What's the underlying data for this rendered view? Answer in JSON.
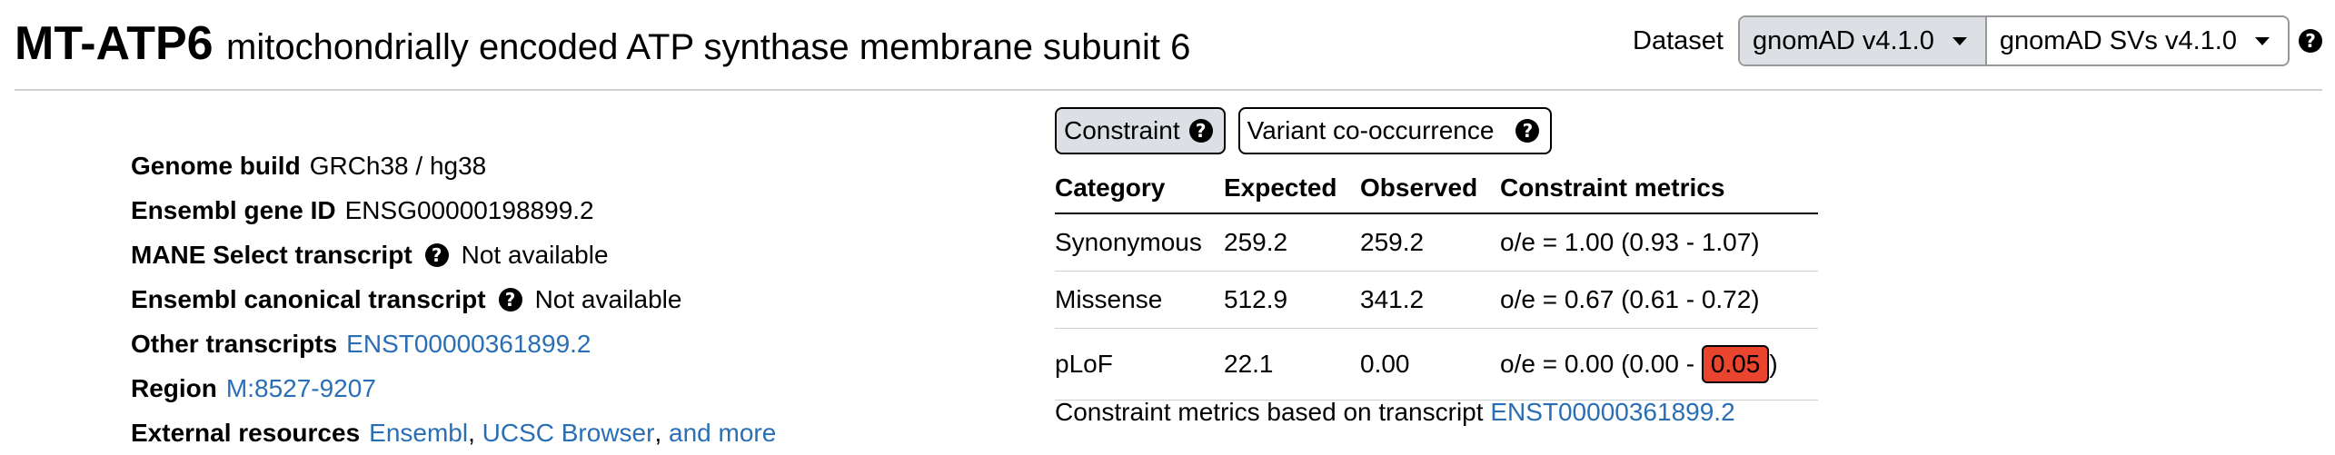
{
  "gene": {
    "symbol": "MT-ATP6",
    "name": "mitochondrially encoded ATP synthase membrane subunit 6"
  },
  "dataset": {
    "label": "Dataset",
    "options": [
      "gnomAD v4.1.0",
      "gnomAD SVs v4.1.0"
    ],
    "selected": "gnomAD v4.1.0",
    "help_icon": "question-circle-icon"
  },
  "info": {
    "genome_build_label": "Genome build",
    "genome_build_value": "GRCh38 / hg38",
    "ensembl_id_label": "Ensembl gene ID",
    "ensembl_id_value": "ENSG00000198899.2",
    "mane_label": "MANE Select transcript",
    "mane_value": "Not available",
    "canonical_label": "Ensembl canonical transcript",
    "canonical_value": "Not available",
    "other_transcripts_label": "Other transcripts",
    "other_transcripts_value": "ENST00000361899.2",
    "region_label": "Region",
    "region_value": "M:8527-9207",
    "external_label": "External resources",
    "external_links": [
      "Ensembl",
      "UCSC Browser",
      "and more"
    ],
    "separator": ","
  },
  "tabs": [
    {
      "label": "Constraint",
      "active": true
    },
    {
      "label": "Variant co-occurrence",
      "active": false
    }
  ],
  "constraint_table": {
    "headers": [
      "Category",
      "Expected",
      "Observed",
      "Constraint metrics"
    ],
    "rows": [
      {
        "category": "Synonymous",
        "expected": "259.2",
        "observed": "259.2",
        "metric": "o/e = 1.00 (0.93 - 1.07)"
      },
      {
        "category": "Missense",
        "expected": "512.9",
        "observed": "341.2",
        "metric": "o/e = 0.67 (0.61 - 0.72)"
      },
      {
        "category": "pLoF",
        "expected": "22.1",
        "observed": "0.00",
        "metric_prefix": "o/e = 0.00 (0.00 - ",
        "metric_flag": "0.05",
        "metric_suffix": ")"
      }
    ],
    "flag_color": "#e8442e"
  },
  "footnote": {
    "text": "Constraint metrics based on transcript",
    "link": "ENST00000361899.2"
  },
  "colors": {
    "link": "#2a6fb5",
    "active_tab_bg": "#dcdfe3"
  }
}
